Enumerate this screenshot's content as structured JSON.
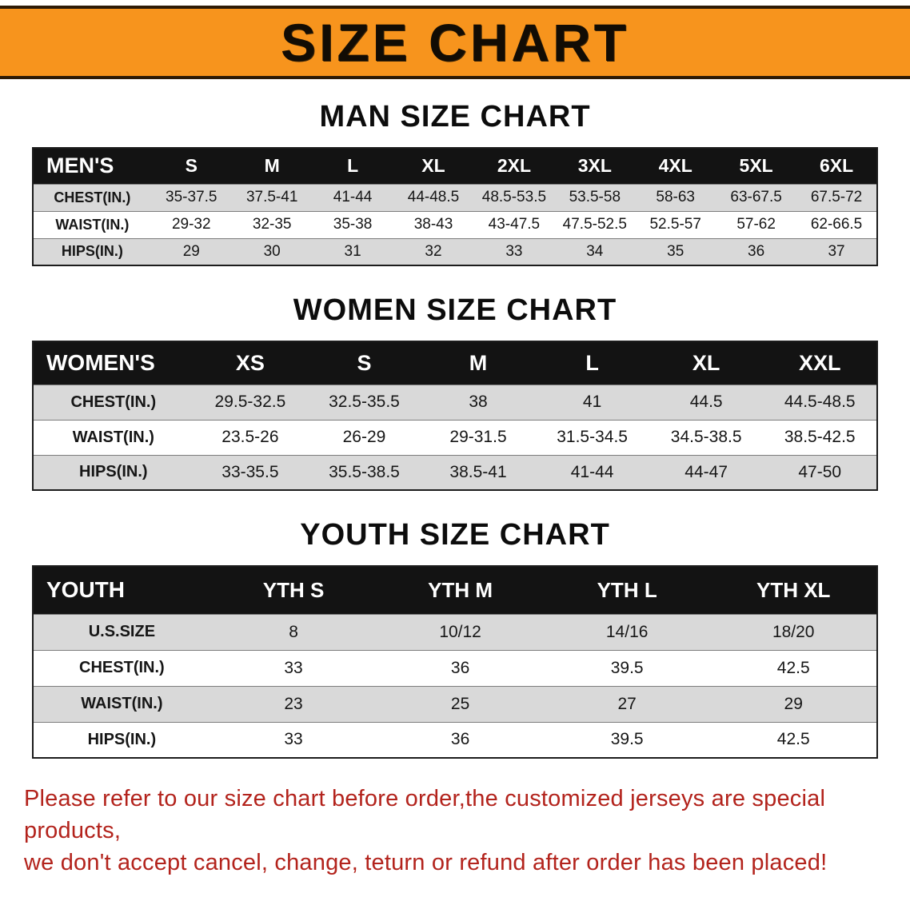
{
  "banner": {
    "title": "SIZE CHART"
  },
  "colors": {
    "banner_orange": "#f7941d",
    "banner_border": "#2d1a06",
    "table_header_black": "#131313",
    "stripe_gray": "#d9d9d9",
    "disclaimer_red": "#b3231c"
  },
  "sections": [
    {
      "heading": "MAN SIZE CHART",
      "table": {
        "header": [
          "MEN'S",
          "S",
          "M",
          "L",
          "XL",
          "2XL",
          "3XL",
          "4XL",
          "5XL",
          "6XL"
        ],
        "rows": [
          {
            "label": "CHEST(IN.)",
            "values": [
              "35-37.5",
              "37.5-41",
              "41-44",
              "44-48.5",
              "48.5-53.5",
              "53.5-58",
              "58-63",
              "63-67.5",
              "67.5-72"
            ]
          },
          {
            "label": "WAIST(IN.)",
            "values": [
              "29-32",
              "32-35",
              "35-38",
              "38-43",
              "43-47.5",
              "47.5-52.5",
              "52.5-57",
              "57-62",
              "62-66.5"
            ]
          },
          {
            "label": "HIPS(IN.)",
            "values": [
              "29",
              "30",
              "31",
              "32",
              "33",
              "34",
              "35",
              "36",
              "37"
            ]
          }
        ]
      }
    },
    {
      "heading": "WOMEN SIZE CHART",
      "table": {
        "header": [
          "WOMEN'S",
          "XS",
          "S",
          "M",
          "L",
          "XL",
          "XXL"
        ],
        "rows": [
          {
            "label": "CHEST(IN.)",
            "values": [
              "29.5-32.5",
              "32.5-35.5",
              "38",
              "41",
              "44.5",
              "44.5-48.5"
            ]
          },
          {
            "label": "WAIST(IN.)",
            "values": [
              "23.5-26",
              "26-29",
              "29-31.5",
              "31.5-34.5",
              "34.5-38.5",
              "38.5-42.5"
            ]
          },
          {
            "label": "HIPS(IN.)",
            "values": [
              "33-35.5",
              "35.5-38.5",
              "38.5-41",
              "41-44",
              "44-47",
              "47-50"
            ]
          }
        ]
      }
    },
    {
      "heading": "YOUTH SIZE CHART",
      "table": {
        "header": [
          "YOUTH",
          "YTH S",
          "YTH M",
          "YTH L",
          "YTH XL"
        ],
        "rows": [
          {
            "label": "U.S.SIZE",
            "values": [
              "8",
              "10/12",
              "14/16",
              "18/20"
            ]
          },
          {
            "label": "CHEST(IN.)",
            "values": [
              "33",
              "36",
              "39.5",
              "42.5"
            ]
          },
          {
            "label": "WAIST(IN.)",
            "values": [
              "23",
              "25",
              "27",
              "29"
            ]
          },
          {
            "label": "HIPS(IN.)",
            "values": [
              "33",
              "36",
              "39.5",
              "42.5"
            ]
          }
        ]
      }
    }
  ],
  "disclaimer": {
    "line1": "Please refer to our size chart before order,the customized jerseys are special products,",
    "line2": "we don't accept cancel, change, teturn or refund after order has been placed!"
  }
}
